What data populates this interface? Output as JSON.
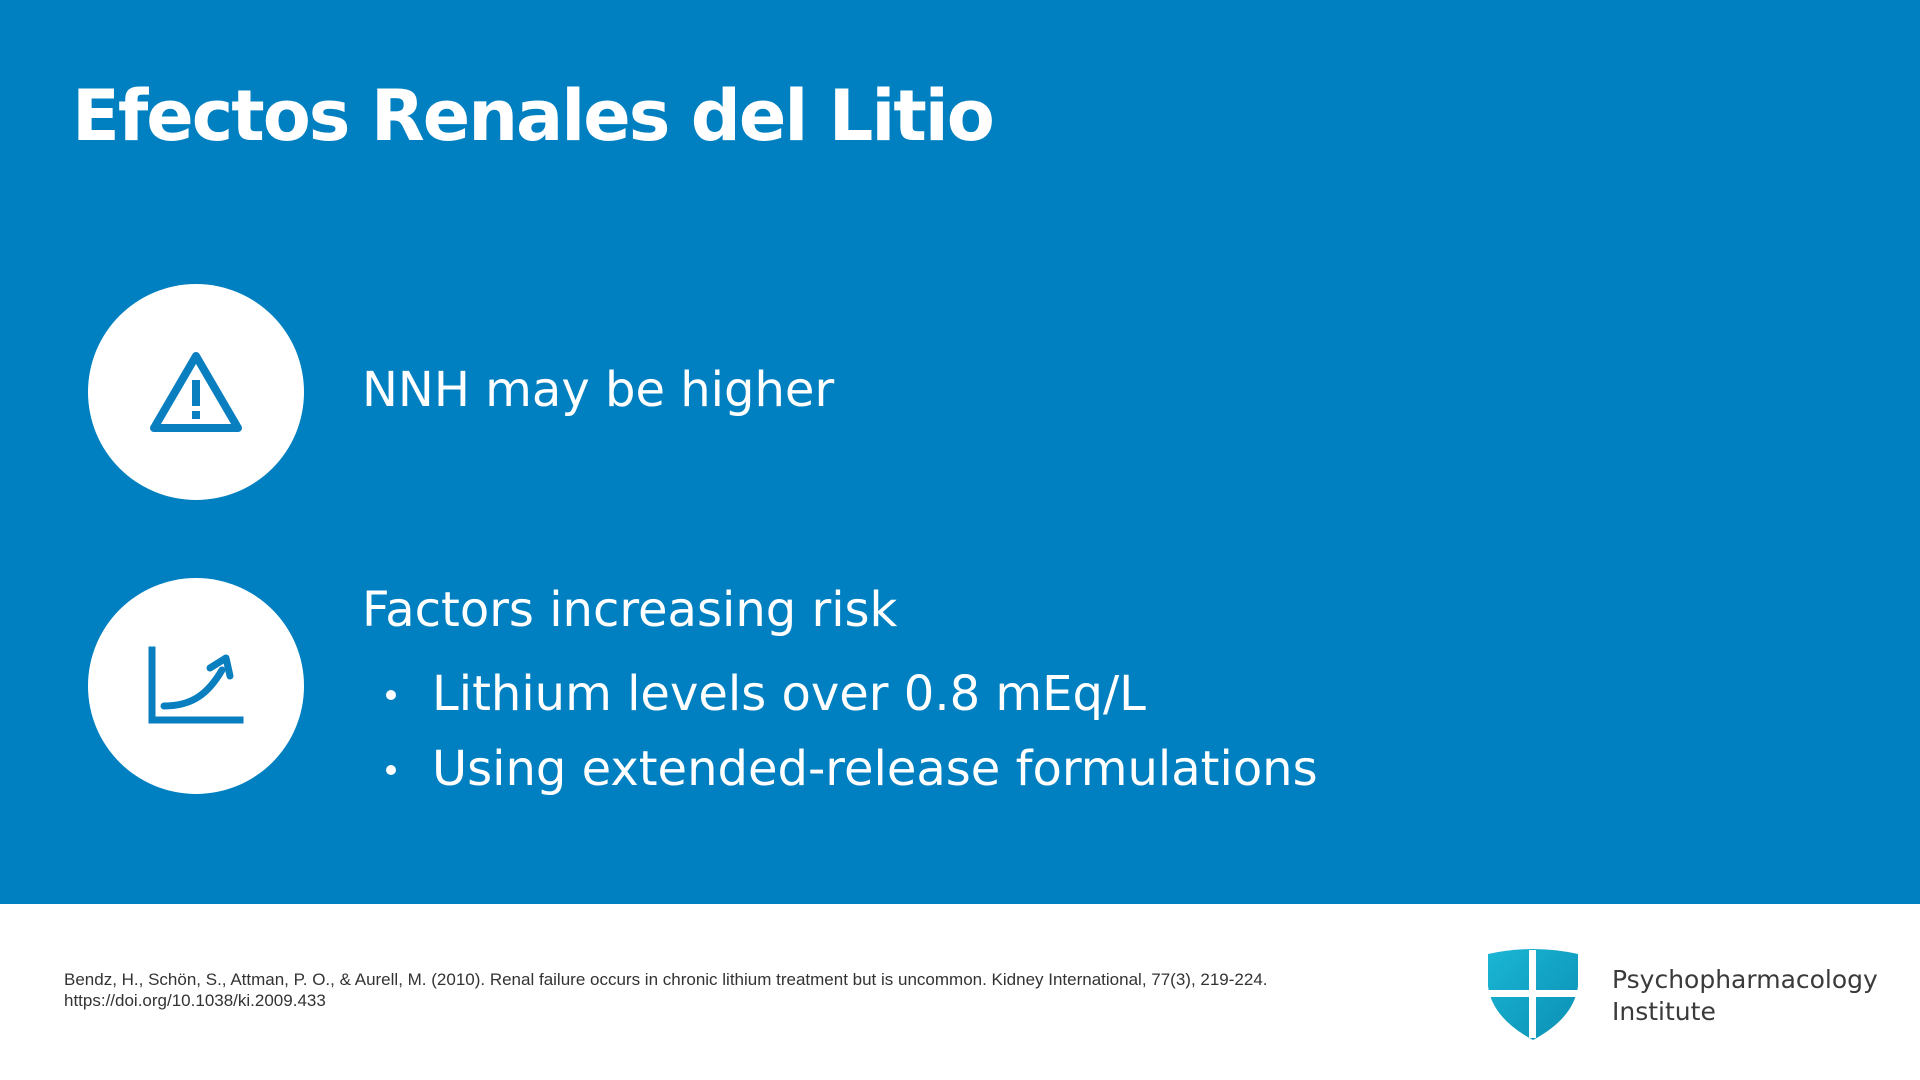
{
  "slide": {
    "title": "Efectos Renales del Litio"
  },
  "items": [
    {
      "icon": "warning-triangle-icon",
      "text": "NNH may be higher"
    },
    {
      "icon": "rising-chart-icon",
      "text": "Factors increasing risk",
      "bullets": [
        "Lithium levels over 0.8 mEq/L",
        "Using extended-release formulations"
      ]
    }
  ],
  "footer": {
    "citation_line1": "Bendz, H., Schön, S., Attman, P. O., & Aurell, M. (2010). Renal failure occurs in chronic lithium treatment but is uncommon. Kidney International, 77(3), 219-224.",
    "citation_line2": "https://doi.org/10.1038/ki.2009.433",
    "logo_line1": "Psychopharmacology",
    "logo_line2": "Institute"
  },
  "colors": {
    "panel_blue": "#0080c1",
    "icon_blue": "#0a7fc0",
    "logo_teal": "#17a9c9",
    "text_white": "#ffffff"
  }
}
